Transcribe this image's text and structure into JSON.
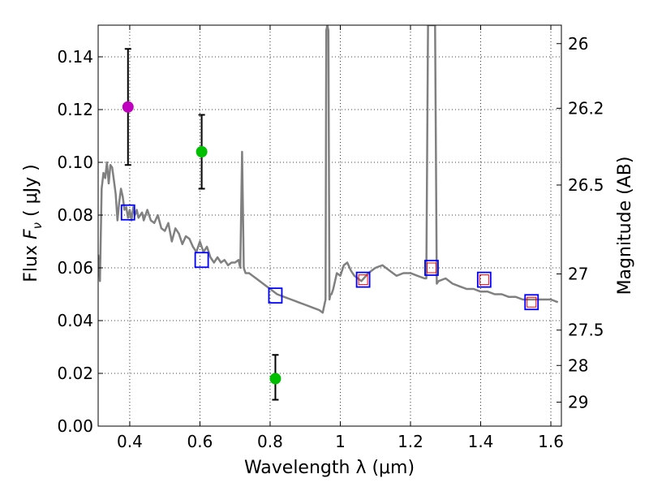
{
  "chart_data": {
    "type": "scatter",
    "xlabel": "Wavelength  λ (μm)",
    "ylabel_main": "Flux  ",
    "ylabel_symbol": "F",
    "ylabel_sub": "ν",
    "ylabel_units": "  ( μJy )",
    "y2label": "Magnitude (AB)",
    "xlim": [
      0.31,
      1.63
    ],
    "ylim": [
      0.0,
      0.152
    ],
    "grid": true,
    "x_ticks": [
      0.4,
      0.6,
      0.8,
      1.0,
      1.2,
      1.4,
      1.6
    ],
    "x_tick_labels": [
      "0.4",
      "0.6",
      "0.8",
      "1",
      "1.2",
      "1.4",
      "1.6"
    ],
    "y_ticks": [
      0.0,
      0.02,
      0.04,
      0.06,
      0.08,
      0.1,
      0.12,
      0.14
    ],
    "y_tick_labels": [
      "0.00",
      "0.02",
      "0.04",
      "0.06",
      "0.08",
      "0.10",
      "0.12",
      "0.14"
    ],
    "y2_ticks": [
      {
        "label": "26",
        "flux": 0.145
      },
      {
        "label": "26.2",
        "flux": 0.1205
      },
      {
        "label": "26.5",
        "flux": 0.0914
      },
      {
        "label": "27",
        "flux": 0.0577
      },
      {
        "label": "27.5",
        "flux": 0.0364
      },
      {
        "label": "28",
        "flux": 0.023
      },
      {
        "label": "29",
        "flux": 0.0091
      }
    ],
    "colors": {
      "model": "#808080",
      "observed_magenta": "#bf00bf",
      "observed_green": "#00bf00",
      "model_box": "#0000ff",
      "model_box_inner": "#ff0000",
      "errorbar": "#000000"
    },
    "series": [
      {
        "kind": "line",
        "x": [
          0.31,
          0.315,
          0.32,
          0.325,
          0.33,
          0.335,
          0.34,
          0.345,
          0.35,
          0.355,
          0.36,
          0.365,
          0.37,
          0.375,
          0.38,
          0.385,
          0.39,
          0.395,
          0.4,
          0.405,
          0.41,
          0.415,
          0.42,
          0.425,
          0.43,
          0.435,
          0.44,
          0.45,
          0.46,
          0.47,
          0.48,
          0.49,
          0.5,
          0.51,
          0.52,
          0.53,
          0.54,
          0.55,
          0.56,
          0.57,
          0.58,
          0.59,
          0.6,
          0.61,
          0.62,
          0.63,
          0.64,
          0.65,
          0.66,
          0.67,
          0.68,
          0.69,
          0.7,
          0.71,
          0.715,
          0.72,
          0.725,
          0.73,
          0.74,
          0.75,
          0.76,
          0.77,
          0.78,
          0.79,
          0.8,
          0.82,
          0.84,
          0.86,
          0.88,
          0.9,
          0.92,
          0.94,
          0.95,
          0.958,
          0.96,
          0.963,
          0.966,
          0.969,
          0.972,
          0.975,
          0.98,
          0.99,
          1.0,
          1.01,
          1.02,
          1.03,
          1.04,
          1.05,
          1.06,
          1.08,
          1.1,
          1.12,
          1.14,
          1.16,
          1.18,
          1.2,
          1.22,
          1.24,
          1.245,
          1.25,
          1.255,
          1.26,
          1.265,
          1.27,
          1.275,
          1.28,
          1.3,
          1.32,
          1.34,
          1.36,
          1.38,
          1.4,
          1.42,
          1.44,
          1.46,
          1.48,
          1.5,
          1.52,
          1.54,
          1.56,
          1.58,
          1.6,
          1.62
        ],
        "y": [
          0.065,
          0.055,
          0.09,
          0.096,
          0.094,
          0.1,
          0.092,
          0.099,
          0.098,
          0.093,
          0.088,
          0.078,
          0.085,
          0.09,
          0.087,
          0.082,
          0.083,
          0.079,
          0.082,
          0.078,
          0.083,
          0.08,
          0.082,
          0.079,
          0.08,
          0.081,
          0.078,
          0.082,
          0.078,
          0.077,
          0.08,
          0.075,
          0.074,
          0.077,
          0.07,
          0.075,
          0.073,
          0.069,
          0.072,
          0.071,
          0.068,
          0.066,
          0.07,
          0.066,
          0.068,
          0.064,
          0.062,
          0.064,
          0.062,
          0.063,
          0.061,
          0.062,
          0.062,
          0.063,
          0.06,
          0.104,
          0.06,
          0.058,
          0.058,
          0.057,
          0.056,
          0.055,
          0.054,
          0.053,
          0.052,
          0.05,
          0.049,
          0.048,
          0.047,
          0.046,
          0.045,
          0.044,
          0.043,
          0.048,
          0.15,
          0.152,
          0.15,
          0.048,
          0.05,
          0.05,
          0.052,
          0.058,
          0.057,
          0.061,
          0.062,
          0.059,
          0.057,
          0.056,
          0.055,
          0.058,
          0.06,
          0.061,
          0.059,
          0.057,
          0.058,
          0.058,
          0.057,
          0.056,
          0.056,
          0.152,
          0.152,
          0.152,
          0.152,
          0.152,
          0.054,
          0.055,
          0.056,
          0.054,
          0.053,
          0.052,
          0.052,
          0.051,
          0.051,
          0.05,
          0.05,
          0.049,
          0.049,
          0.048,
          0.048,
          0.048,
          0.048,
          0.048,
          0.047
        ]
      },
      {
        "kind": "errorbar",
        "color_key": "observed_magenta",
        "x": [
          0.395
        ],
        "y": [
          0.121
        ],
        "yerr_low": [
          0.099
        ],
        "yerr_high": [
          0.143
        ]
      },
      {
        "kind": "errorbar",
        "color_key": "observed_green",
        "x": [
          0.605,
          0.815
        ],
        "y": [
          0.104,
          0.018
        ],
        "yerr_low": [
          0.09,
          0.01
        ],
        "yerr_high": [
          0.118,
          0.027
        ]
      },
      {
        "kind": "box",
        "x": [
          0.395,
          0.605,
          0.815,
          1.065,
          1.26,
          1.41,
          1.545
        ],
        "y": [
          0.081,
          0.063,
          0.0495,
          0.0555,
          0.06,
          0.0555,
          0.047
        ],
        "inner_red": [
          false,
          false,
          false,
          true,
          true,
          true,
          true
        ]
      }
    ]
  }
}
